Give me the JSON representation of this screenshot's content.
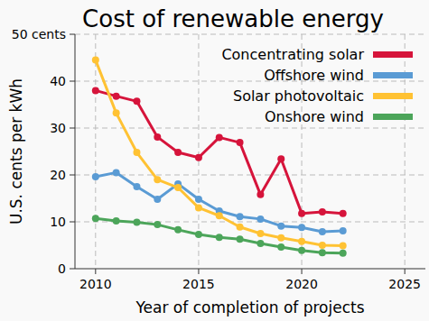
{
  "chart_data": {
    "type": "line",
    "title": "Cost of renewable energy",
    "x_label": "Year of completion of projects",
    "y_label": "U.S. cents per kWh",
    "x": [
      2010,
      2011,
      2012,
      2013,
      2014,
      2015,
      2016,
      2017,
      2018,
      2019,
      2020,
      2021,
      2022
    ],
    "series": [
      {
        "name": "Concentrating solar",
        "color": "#d6143b",
        "values": [
          38.0,
          36.8,
          35.7,
          28.1,
          24.8,
          23.7,
          28.0,
          26.9,
          15.8,
          23.4,
          11.8,
          12.1,
          11.8
        ]
      },
      {
        "name": "Offshore wind",
        "color": "#5a9bd4",
        "values": [
          19.6,
          20.5,
          17.5,
          14.8,
          18.1,
          14.8,
          12.3,
          11.1,
          10.6,
          9.1,
          8.8,
          7.9,
          8.1
        ]
      },
      {
        "name": "Solar photovoltaic",
        "color": "#ffc233",
        "values": [
          44.5,
          33.2,
          24.8,
          19.0,
          17.3,
          13.0,
          11.3,
          8.9,
          7.5,
          6.6,
          5.8,
          5.0,
          4.9
        ]
      },
      {
        "name": "Onshore wind",
        "color": "#4ca55a",
        "values": [
          10.7,
          10.2,
          9.9,
          9.4,
          8.3,
          7.3,
          6.7,
          6.3,
          5.4,
          4.6,
          3.9,
          3.4,
          3.3
        ]
      }
    ],
    "xlim": [
      2009,
      2026
    ],
    "xticks": [
      2010,
      2015,
      2020,
      2025
    ],
    "ylim": [
      0,
      50
    ],
    "yticks": [
      0,
      10,
      20,
      30,
      40,
      {
        "value": 50,
        "label": "50 cents"
      }
    ],
    "grid": true,
    "legend": "upper right",
    "marker": "circle"
  }
}
